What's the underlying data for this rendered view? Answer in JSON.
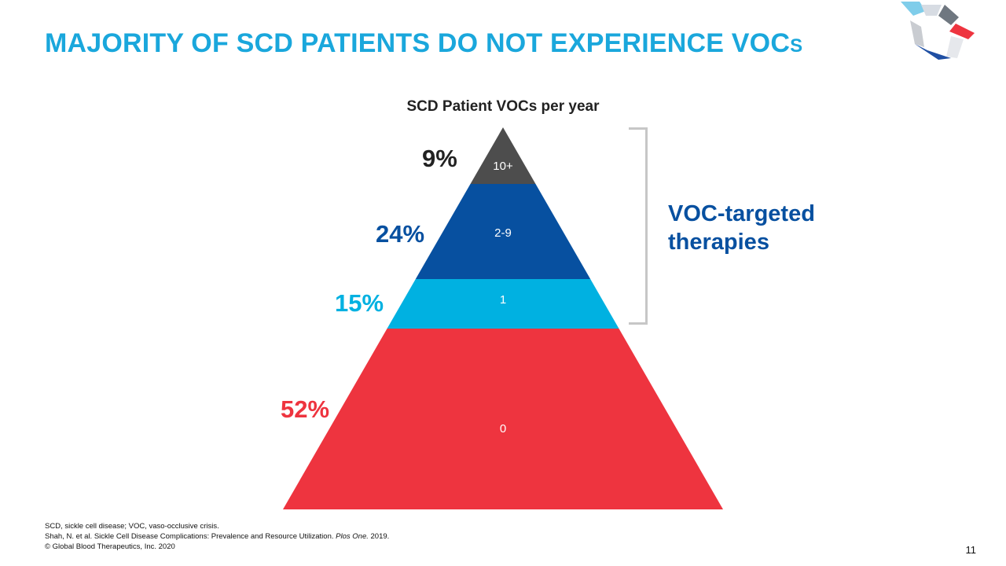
{
  "slide": {
    "title_main": "MAJORITY OF SCD PATIENTS DO NOT EXPERIENCE VOC",
    "title_suffix": "S",
    "page_number": "11"
  },
  "colors": {
    "title": "#1aa7dc",
    "tier_10_plus": "#4d4d4d",
    "tier_2_9": "#0750a0",
    "tier_1": "#00b1e1",
    "tier_0": "#ee343f",
    "bracket": "#c7c7c7"
  },
  "chart_data": {
    "type": "pyramid",
    "title": "SCD Patient VOCs per year",
    "tiers": [
      {
        "label": "10+",
        "percent": 9,
        "percent_label": "9%",
        "color": "#4d4d4d",
        "label_color": "#ffffff",
        "percent_color": "#222222"
      },
      {
        "label": "2-9",
        "percent": 24,
        "percent_label": "24%",
        "color": "#0750a0",
        "label_color": "#ffffff",
        "percent_color": "#0750a0"
      },
      {
        "label": "1",
        "percent": 15,
        "percent_label": "15%",
        "color": "#00b1e1",
        "label_color": "#ffffff",
        "percent_color": "#00b1e1"
      },
      {
        "label": "0",
        "percent": 52,
        "percent_label": "52%",
        "color": "#ee343f",
        "label_color": "#ffffff",
        "percent_color": "#ee343f"
      }
    ],
    "bracket_label": "VOC-targeted therapies",
    "bracket_tiers": [
      "10+",
      "2-9",
      "1"
    ]
  },
  "footnotes": {
    "abbreviations": "SCD, sickle cell disease; VOC, vaso-occlusive crisis.",
    "reference_pre": "Shah, N. et al. Sickle Cell Disease Complications: Prevalence and Resource Utilization. ",
    "reference_journal": "Plos One.",
    "reference_year": " 2019.",
    "copyright": "© Global Blood Therapeutics, Inc. 2020"
  }
}
